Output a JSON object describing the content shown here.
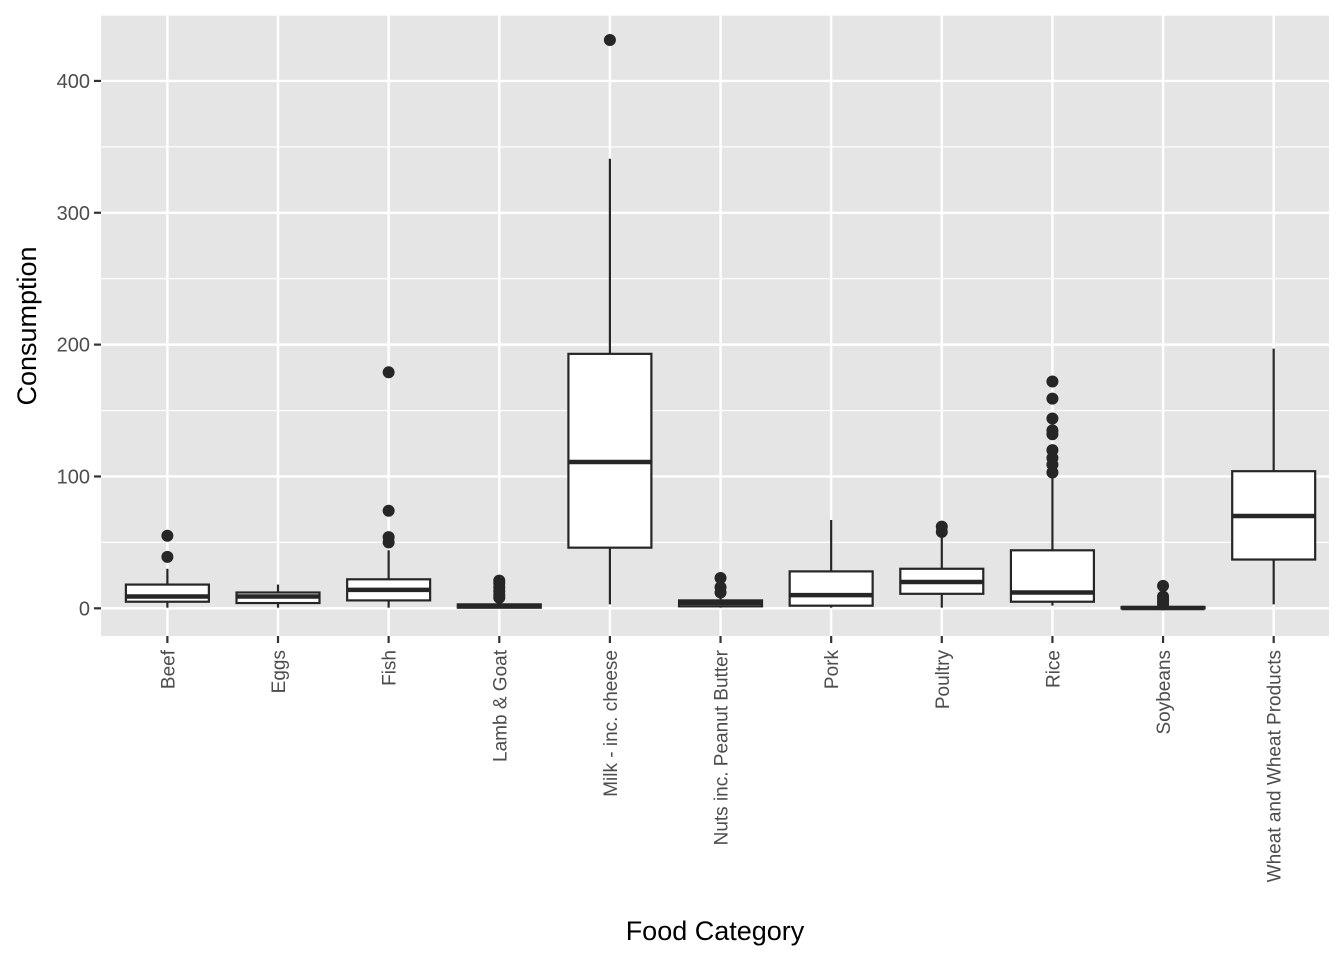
{
  "chart_data": {
    "type": "boxplot",
    "title": "",
    "xlabel": "Food Category",
    "ylabel": "Consumption",
    "ylim": [
      -21,
      450
    ],
    "yticks": [
      0,
      100,
      200,
      300,
      400
    ],
    "grid": true,
    "legend": "none",
    "colors": {
      "panel": "#e5e5e5",
      "grid": "#ffffff",
      "box_fill": "#ffffff",
      "box_stroke": "#262626",
      "tick": "#333333",
      "tick_text": "#4d4d4d"
    },
    "categories": [
      "Beef",
      "Eggs",
      "Fish",
      "Lamb & Goat",
      "Milk - inc. cheese",
      "Nuts inc. Peanut Butter",
      "Pork",
      "Poultry",
      "Rice",
      "Soybeans",
      "Wheat and Wheat Products"
    ],
    "boxes": [
      {
        "category": "Beef",
        "whisker_low": 0.5,
        "q1": 5,
        "median": 9,
        "q3": 18,
        "whisker_high": 30,
        "outliers": [
          55,
          39
        ]
      },
      {
        "category": "Eggs",
        "whisker_low": 0.5,
        "q1": 4,
        "median": 9,
        "q3": 12,
        "whisker_high": 18,
        "outliers": []
      },
      {
        "category": "Fish",
        "whisker_low": 0.5,
        "q1": 6,
        "median": 14,
        "q3": 22,
        "whisker_high": 44,
        "outliers": [
          179,
          74,
          54,
          50
        ]
      },
      {
        "category": "Lamb & Goat",
        "whisker_low": 0,
        "q1": 0.5,
        "median": 1.5,
        "q3": 3,
        "whisker_high": 6,
        "outliers": [
          21,
          19,
          16,
          13,
          10,
          8
        ]
      },
      {
        "category": "Milk - inc. cheese",
        "whisker_low": 3,
        "q1": 46,
        "median": 111,
        "q3": 193,
        "whisker_high": 341,
        "outliers": [
          431
        ]
      },
      {
        "category": "Nuts inc. Peanut Butter",
        "whisker_low": 0.5,
        "q1": 1.5,
        "median": 4,
        "q3": 6,
        "whisker_high": 9,
        "outliers": [
          23,
          16,
          12
        ]
      },
      {
        "category": "Pork",
        "whisker_low": 0.5,
        "q1": 2,
        "median": 10,
        "q3": 28,
        "whisker_high": 67,
        "outliers": []
      },
      {
        "category": "Poultry",
        "whisker_low": 0.5,
        "q1": 11,
        "median": 20,
        "q3": 30,
        "whisker_high": 56,
        "outliers": [
          62,
          58
        ]
      },
      {
        "category": "Rice",
        "whisker_low": 2,
        "q1": 5,
        "median": 12,
        "q3": 44,
        "whisker_high": 100,
        "outliers": [
          172,
          159,
          144,
          135,
          132,
          120,
          114,
          109,
          103
        ]
      },
      {
        "category": "Soybeans",
        "whisker_low": 0,
        "q1": 0,
        "median": 0.2,
        "q3": 1,
        "whisker_high": 2,
        "outliers": [
          17,
          9,
          7,
          5,
          3
        ]
      },
      {
        "category": "Wheat and Wheat Products",
        "whisker_low": 3,
        "q1": 37,
        "median": 70,
        "q3": 104,
        "whisker_high": 197,
        "outliers": []
      }
    ]
  }
}
